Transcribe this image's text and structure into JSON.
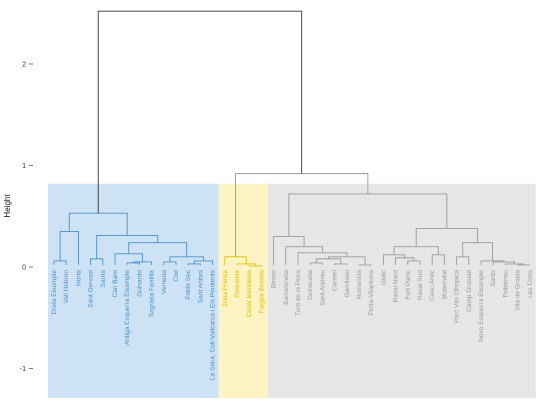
{
  "chart_data": {
    "type": "dendrogram",
    "title": "",
    "xlabel": "",
    "ylabel": "Height",
    "ylim": [
      -1.3,
      2.6
    ],
    "yticks": [
      -1,
      0,
      1,
      2
    ],
    "grid": false,
    "legend": "none",
    "colors": {
      "cluster_1": "#4a90c8",
      "cluster_2": "#e0c000",
      "cluster_3": "#9a9a9a",
      "root": "#333333",
      "band_1": "#cde3f5",
      "band_2": "#fdf3c3",
      "band_3": "#e6e6e6"
    },
    "leaves": [
      {
        "name": "Dreta Eixample",
        "cluster": "cluster_1"
      },
      {
        "name": "Vall Hebron",
        "cluster": "cluster_1"
      },
      {
        "name": "Horta",
        "cluster": "cluster_1"
      },
      {
        "name": "Sant Gervasi",
        "cluster": "cluster_1"
      },
      {
        "name": "Sarria",
        "cluster": "cluster_1"
      },
      {
        "name": "Can Baro",
        "cluster": "cluster_1"
      },
      {
        "name": "Antiga Esquerra Eixample",
        "cluster": "cluster_1"
      },
      {
        "name": "Guinardo",
        "cluster": "cluster_1"
      },
      {
        "name": "Sagrada Familia",
        "cluster": "cluster_1"
      },
      {
        "name": "Verneda",
        "cluster": "cluster_1"
      },
      {
        "name": "Clot",
        "cluster": "cluster_1"
      },
      {
        "name": "Poble Sec",
        "cluster": "cluster_1"
      },
      {
        "name": "Sant Antoni",
        "cluster": "cluster_1"
      },
      {
        "name": "La Salut, Coll-Vallcarca i Els Penitents",
        "cluster": "cluster_1"
      },
      {
        "name": "Zona Franca",
        "cluster": "cluster_2"
      },
      {
        "name": "Roquetes",
        "cluster": "cluster_2"
      },
      {
        "name": "Ciutat Meridiana",
        "cluster": "cluster_2"
      },
      {
        "name": "Fargas Bessos",
        "cluster": "cluster_2"
      },
      {
        "name": "Besos",
        "cluster": "cluster_3"
      },
      {
        "name": "Barceloneta",
        "cluster": "cluster_3"
      },
      {
        "name": "Turo de la Peira",
        "cluster": "cluster_3"
      },
      {
        "name": "Guineueta",
        "cluster": "cluster_3"
      },
      {
        "name": "Sant Andreu",
        "cluster": "cluster_3"
      },
      {
        "name": "Carmel",
        "cluster": "cluster_3"
      },
      {
        "name": "Garcilaso",
        "cluster": "cluster_3"
      },
      {
        "name": "Numancia",
        "cluster": "cluster_3"
      },
      {
        "name": "Porta-Vilapicina",
        "cluster": "cluster_3"
      },
      {
        "name": "Gotic",
        "cluster": "cluster_3"
      },
      {
        "name": "Raval Nord",
        "cluster": "cluster_3"
      },
      {
        "name": "Fort Pienc",
        "cluster": "cluster_3"
      },
      {
        "name": "Raval Sud",
        "cluster": "cluster_3"
      },
      {
        "name": "Casc Antic",
        "cluster": "cluster_3"
      },
      {
        "name": "Maternitat",
        "cluster": "cluster_3"
      },
      {
        "name": "Parc Vila Olimpica",
        "cluster": "cluster_3"
      },
      {
        "name": "Camp Grassot",
        "cluster": "cluster_3"
      },
      {
        "name": "Nova Esquerra Eixample",
        "cluster": "cluster_3"
      },
      {
        "name": "Sants",
        "cluster": "cluster_3"
      },
      {
        "name": "Poblenou",
        "cluster": "cluster_3"
      },
      {
        "name": "Vila de Gracia",
        "cluster": "cluster_3"
      },
      {
        "name": "Les Corts",
        "cluster": "cluster_3"
      }
    ],
    "merges": [
      {
        "left": 0,
        "right": 1,
        "height": 0.06,
        "cluster": "cluster_1"
      },
      {
        "left": 3,
        "right": 4,
        "height": 0.08,
        "cluster": "cluster_1"
      },
      {
        "left": 9,
        "right": 10,
        "height": 0.05,
        "cluster": "cluster_1"
      },
      {
        "left": 11,
        "right": 12,
        "height": 0.03,
        "cluster": "cluster_1"
      },
      {
        "left": -4,
        "right": 13,
        "height": 0.06,
        "cluster": "cluster_1"
      },
      {
        "left": -3,
        "right": -5,
        "height": 0.1,
        "cluster": "cluster_1"
      },
      {
        "left": 6,
        "right": 7,
        "height": 0.04,
        "cluster": "cluster_1"
      },
      {
        "left": -7,
        "right": 8,
        "height": 0.05,
        "cluster": "cluster_1"
      },
      {
        "left": 5,
        "right": -8,
        "height": 0.13,
        "cluster": "cluster_1"
      },
      {
        "left": -9,
        "right": -6,
        "height": 0.24,
        "cluster": "cluster_1"
      },
      {
        "left": -2,
        "right": -10,
        "height": 0.31,
        "cluster": "cluster_1"
      },
      {
        "left": -1,
        "right": 2,
        "height": 0.35,
        "cluster": "cluster_1"
      },
      {
        "left": -12,
        "right": -11,
        "height": 0.53,
        "cluster": "cluster_1"
      },
      {
        "left": 16,
        "right": 17,
        "height": 0.01,
        "cluster": "cluster_2"
      },
      {
        "left": 15,
        "right": -14,
        "height": 0.03,
        "cluster": "cluster_2"
      },
      {
        "left": 14,
        "right": -15,
        "height": 0.1,
        "cluster": "cluster_2"
      },
      {
        "left": 21,
        "right": 22,
        "height": 0.04,
        "cluster": "cluster_3"
      },
      {
        "left": 23,
        "right": 24,
        "height": 0.03,
        "cluster": "cluster_3"
      },
      {
        "left": -17,
        "right": -18,
        "height": 0.08,
        "cluster": "cluster_3"
      },
      {
        "left": 25,
        "right": 26,
        "height": 0.02,
        "cluster": "cluster_3"
      },
      {
        "left": -19,
        "right": -20,
        "height": 0.1,
        "cluster": "cluster_3"
      },
      {
        "left": 20,
        "right": -21,
        "height": 0.14,
        "cluster": "cluster_3"
      },
      {
        "left": 19,
        "right": -22,
        "height": 0.2,
        "cluster": "cluster_3"
      },
      {
        "left": 18,
        "right": -23,
        "height": 0.3,
        "cluster": "cluster_3"
      },
      {
        "left": 29,
        "right": 30,
        "height": 0.06,
        "cluster": "cluster_3"
      },
      {
        "left": 28,
        "right": -25,
        "height": 0.09,
        "cluster": "cluster_3"
      },
      {
        "left": 27,
        "right": -26,
        "height": 0.12,
        "cluster": "cluster_3"
      },
      {
        "left": 31,
        "right": 32,
        "height": 0.12,
        "cluster": "cluster_3"
      },
      {
        "left": -27,
        "right": -28,
        "height": 0.2,
        "cluster": "cluster_3"
      },
      {
        "left": 33,
        "right": 34,
        "height": 0.1,
        "cluster": "cluster_3"
      },
      {
        "left": 38,
        "right": 39,
        "height": 0.02,
        "cluster": "cluster_3"
      },
      {
        "left": 37,
        "right": -31,
        "height": 0.03,
        "cluster": "cluster_3"
      },
      {
        "left": 36,
        "right": -32,
        "height": 0.05,
        "cluster": "cluster_3"
      },
      {
        "left": 35,
        "right": -33,
        "height": 0.06,
        "cluster": "cluster_3"
      },
      {
        "left": -30,
        "right": -34,
        "height": 0.24,
        "cluster": "cluster_3"
      },
      {
        "left": -29,
        "right": -35,
        "height": 0.38,
        "cluster": "cluster_3"
      },
      {
        "left": -24,
        "right": -36,
        "height": 0.72,
        "cluster": "cluster_3"
      },
      {
        "left": -16,
        "right": -37,
        "height": 0.92,
        "cluster": "cluster_3"
      },
      {
        "left": -13,
        "right": -38,
        "height": 2.52,
        "cluster": "root"
      }
    ]
  }
}
